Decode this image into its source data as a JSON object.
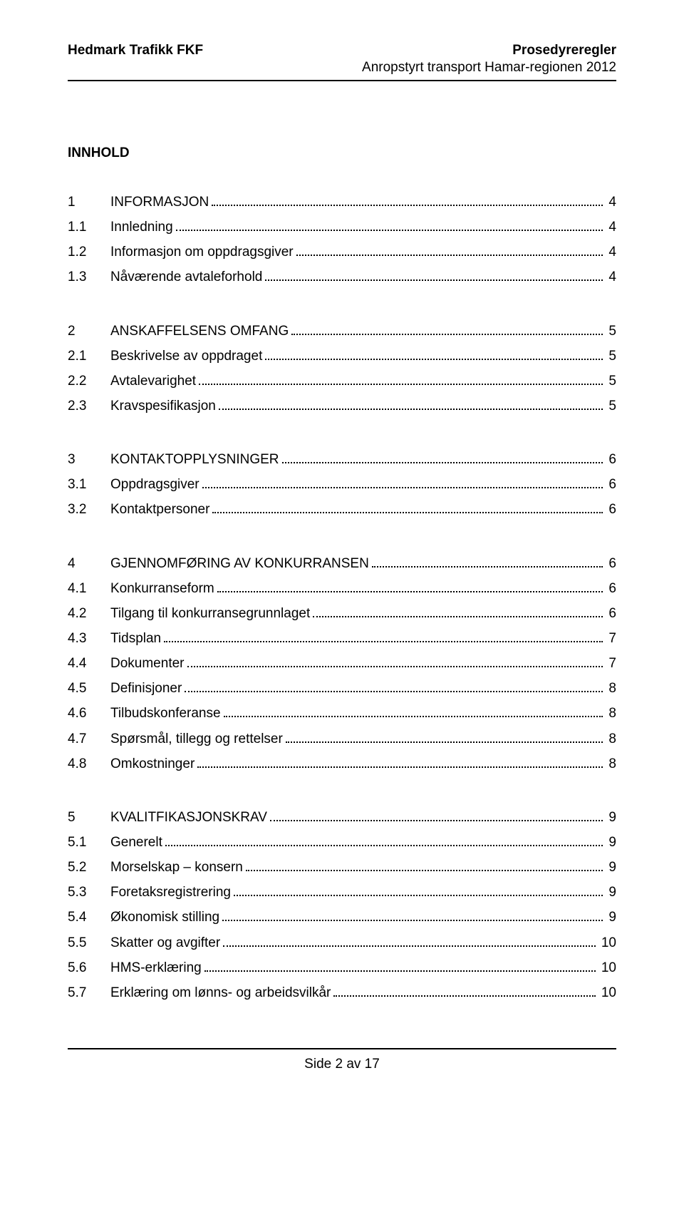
{
  "header": {
    "left": "Hedmark Trafikk FKF",
    "right_top": "Prosedyreregler",
    "right_sub": "Anropstyrt transport Hamar-regionen 2012"
  },
  "title": "INNHOLD",
  "groups": [
    {
      "entries": [
        {
          "num": "1",
          "label": "INFORMASJON",
          "page": "4",
          "caps": true
        },
        {
          "num": "1.1",
          "label": "Innledning",
          "page": "4",
          "caps": false
        },
        {
          "num": "1.2",
          "label": "Informasjon om oppdragsgiver",
          "page": "4",
          "caps": false
        },
        {
          "num": "1.3",
          "label": "Nåværende avtaleforhold",
          "page": "4",
          "caps": false
        }
      ]
    },
    {
      "entries": [
        {
          "num": "2",
          "label": "ANSKAFFELSENS OMFANG",
          "page": "5",
          "caps": true
        },
        {
          "num": "2.1",
          "label": "Beskrivelse av oppdraget",
          "page": "5",
          "caps": false
        },
        {
          "num": "2.2",
          "label": "Avtalevarighet",
          "page": "5",
          "caps": false
        },
        {
          "num": "2.3",
          "label": "Kravspesifikasjon",
          "page": "5",
          "caps": false
        }
      ]
    },
    {
      "entries": [
        {
          "num": "3",
          "label": "KONTAKTOPPLYSNINGER",
          "page": "6",
          "caps": true
        },
        {
          "num": "3.1",
          "label": "Oppdragsgiver",
          "page": "6",
          "caps": false
        },
        {
          "num": "3.2",
          "label": "Kontaktpersoner",
          "page": "6",
          "caps": false
        }
      ]
    },
    {
      "entries": [
        {
          "num": "4",
          "label": "GJENNOMFØRING AV KONKURRANSEN",
          "page": "6",
          "caps": true
        },
        {
          "num": "4.1",
          "label": "Konkurranseform",
          "page": "6",
          "caps": false
        },
        {
          "num": "4.2",
          "label": "Tilgang til konkurransegrunnlaget",
          "page": "6",
          "caps": false
        },
        {
          "num": "4.3",
          "label": "Tidsplan",
          "page": "7",
          "caps": false
        },
        {
          "num": "4.4",
          "label": "Dokumenter",
          "page": "7",
          "caps": false
        },
        {
          "num": "4.5",
          "label": "Definisjoner",
          "page": "8",
          "caps": false
        },
        {
          "num": "4.6",
          "label": "Tilbudskonferanse",
          "page": "8",
          "caps": false
        },
        {
          "num": "4.7",
          "label": "Spørsmål, tillegg og rettelser",
          "page": "8",
          "caps": false
        },
        {
          "num": "4.8",
          "label": "Omkostninger",
          "page": "8",
          "caps": false
        }
      ]
    },
    {
      "entries": [
        {
          "num": "5",
          "label": "KVALITFIKASJONSKRAV",
          "page": "9",
          "caps": true
        },
        {
          "num": "5.1",
          "label": "Generelt",
          "page": "9",
          "caps": false
        },
        {
          "num": "5.2",
          "label": "Morselskap – konsern",
          "page": "9",
          "caps": false
        },
        {
          "num": "5.3",
          "label": "Foretaksregistrering",
          "page": "9",
          "caps": false
        },
        {
          "num": "5.4",
          "label": "Økonomisk stilling",
          "page": "9",
          "caps": false
        },
        {
          "num": "5.5",
          "label": "Skatter og avgifter",
          "page": "10",
          "caps": false
        },
        {
          "num": "5.6",
          "label": "HMS-erklæring",
          "page": "10",
          "caps": false
        },
        {
          "num": "5.7",
          "label": "Erklæring om lønns- og arbeidsvilkår",
          "page": "10",
          "caps": false
        }
      ]
    }
  ],
  "footer": "Side 2 av 17"
}
